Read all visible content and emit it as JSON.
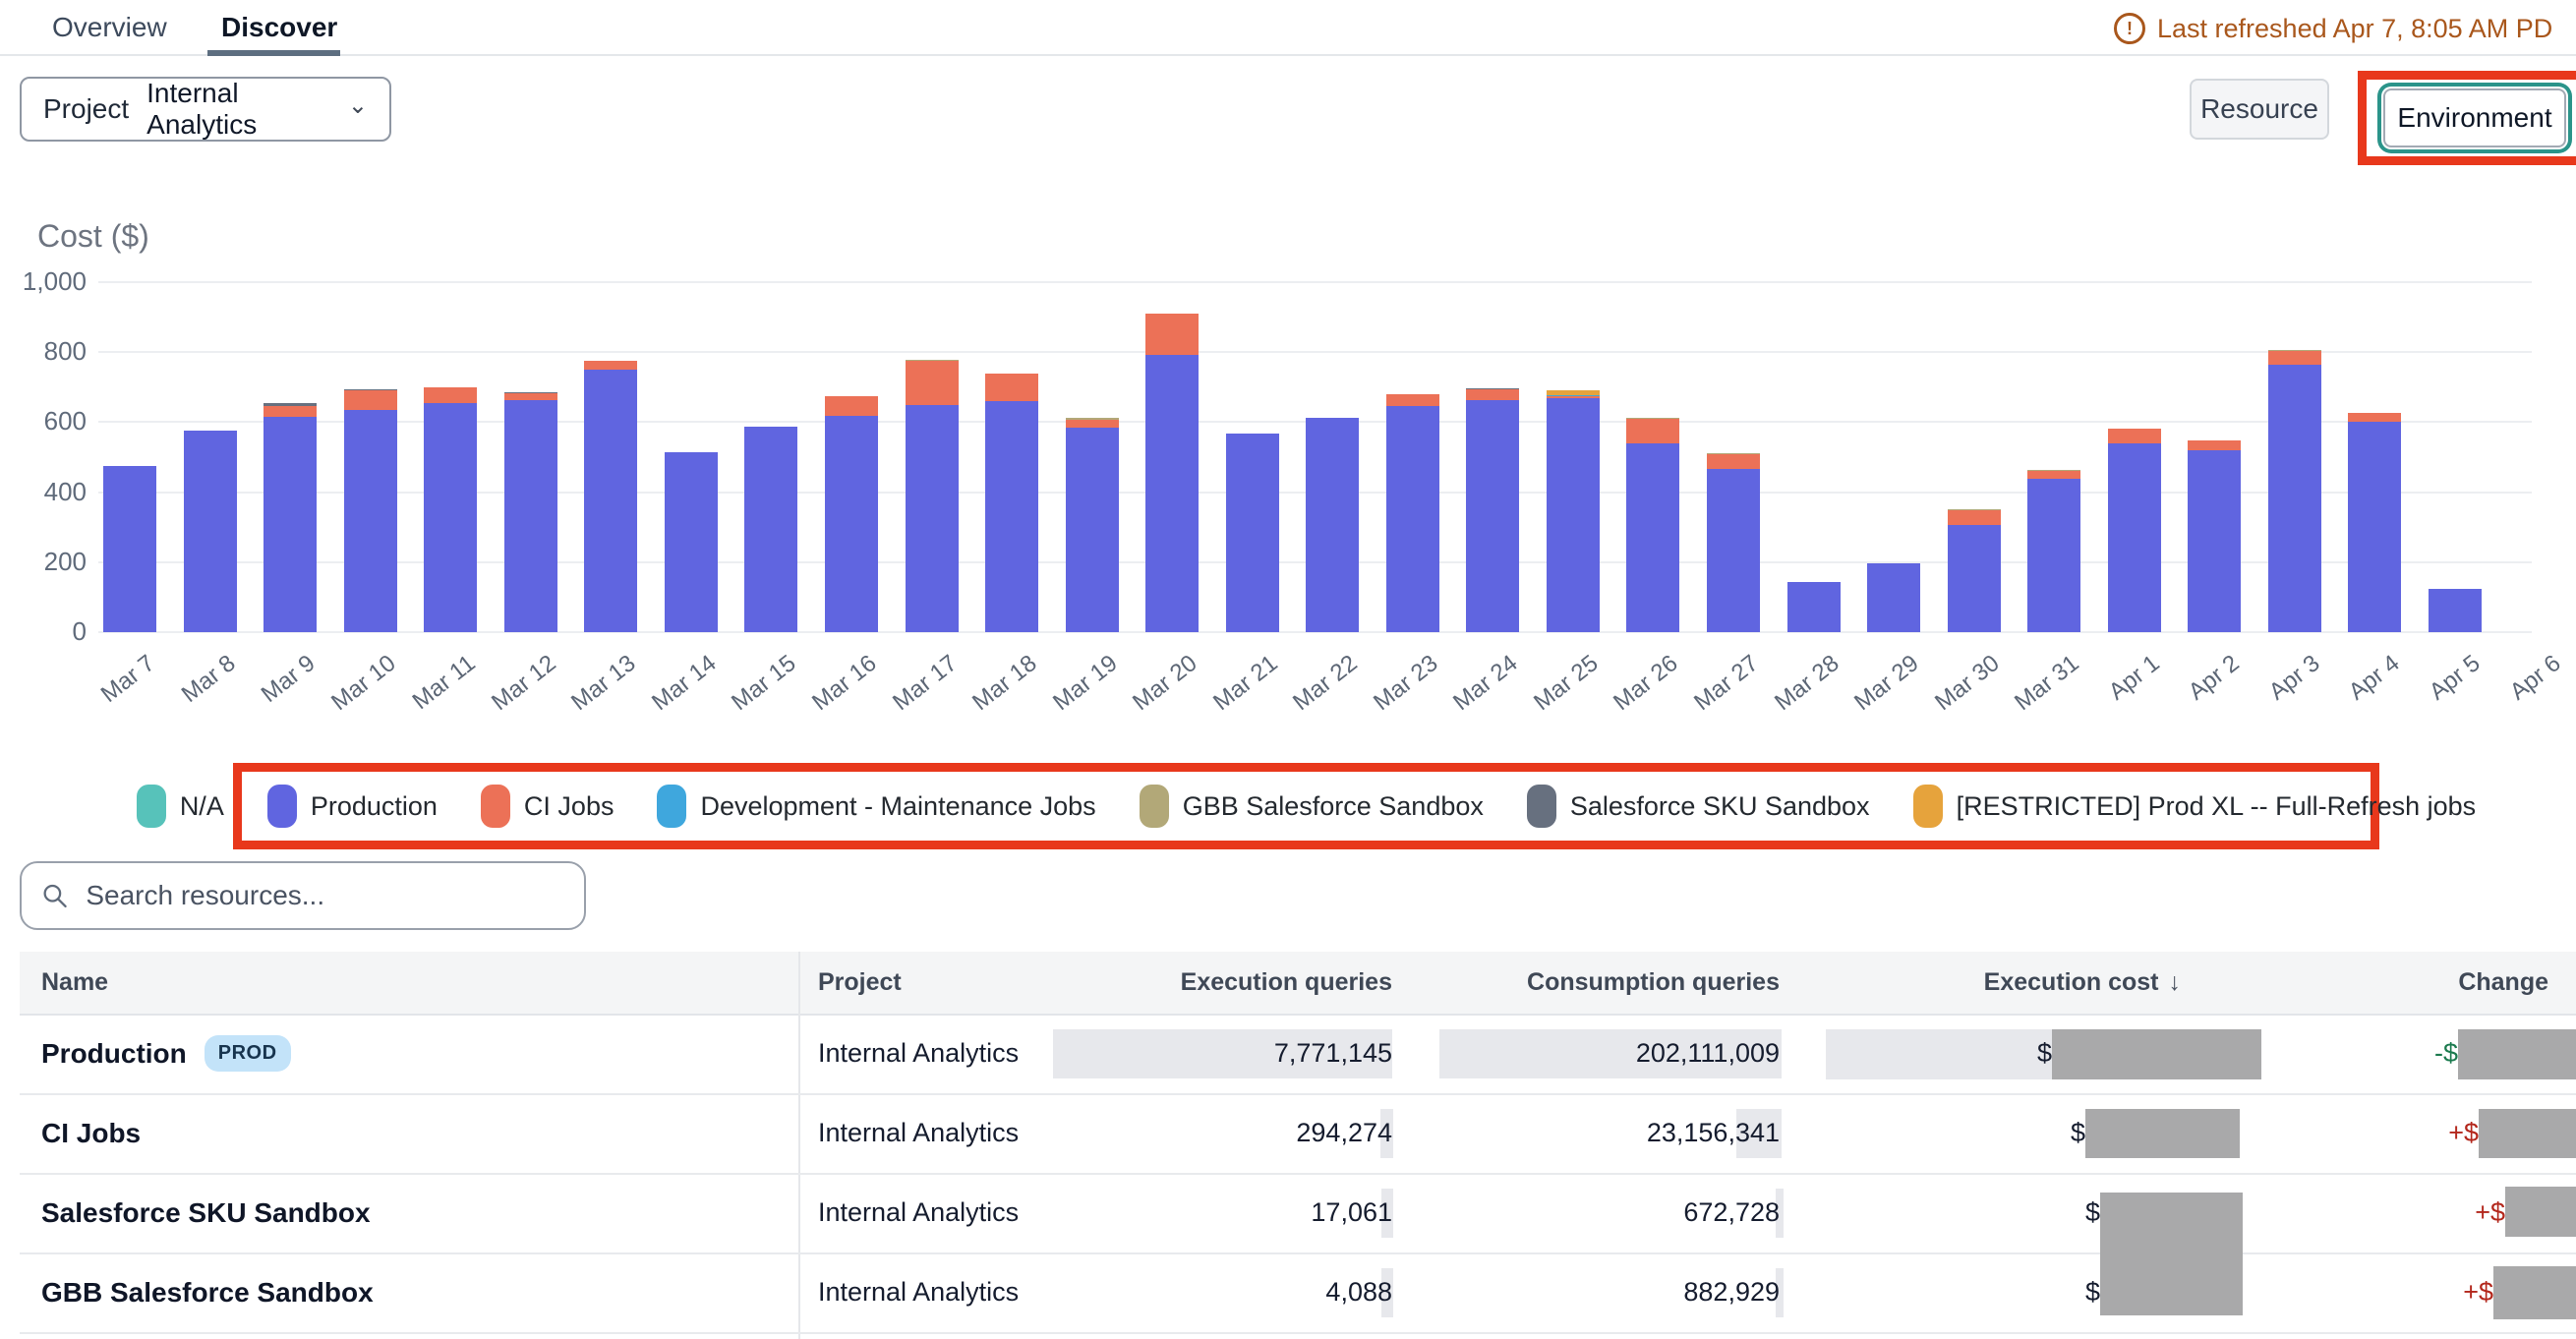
{
  "header": {
    "tabs": [
      {
        "label": "Overview"
      },
      {
        "label": "Discover"
      }
    ],
    "active_tab": "Discover",
    "last_refreshed": "Last refreshed Apr 7, 8:05 AM PD",
    "warning_icon": "exclamation-circle",
    "refresh_color": "#a9571c"
  },
  "controls": {
    "project_filter": {
      "label": "Project",
      "value": "Internal Analytics",
      "chevron": "⌄"
    },
    "resource_button": "Resource",
    "environment_button": "Environment",
    "annotation_color": "#e8381c",
    "environment_ring_color": "#2b948a"
  },
  "chart_data": {
    "type": "bar",
    "stacked": true,
    "title": "Cost ($)",
    "xlabel": "",
    "ylabel": "Cost ($)",
    "ylim": [
      0,
      1000
    ],
    "grid": true,
    "legend_position": "bottom",
    "ytick_values": [
      0,
      200,
      400,
      600,
      800,
      1000
    ],
    "ytick_labels": [
      "0",
      "200",
      "400",
      "600",
      "800",
      "1,000"
    ],
    "categories": [
      "Mar 7",
      "Mar 8",
      "Mar 9",
      "Mar 10",
      "Mar 11",
      "Mar 12",
      "Mar 13",
      "Mar 14",
      "Mar 15",
      "Mar 16",
      "Mar 17",
      "Mar 18",
      "Mar 19",
      "Mar 20",
      "Mar 21",
      "Mar 22",
      "Mar 23",
      "Mar 24",
      "Mar 25",
      "Mar 26",
      "Mar 27",
      "Mar 28",
      "Mar 29",
      "Mar 30",
      "Mar 31",
      "Apr 1",
      "Apr 2",
      "Apr 3",
      "Apr 4",
      "Apr 5",
      "Apr 6"
    ],
    "series": [
      {
        "name": "Production",
        "color": "#6065e0",
        "values": [
          475,
          575,
          615,
          635,
          655,
          663,
          750,
          513,
          588,
          619,
          649,
          661,
          584,
          792,
          567,
          612,
          645,
          664,
          668,
          540,
          465,
          143,
          197,
          305,
          438,
          540,
          520,
          765,
          600,
          124,
          0
        ]
      },
      {
        "name": "CI Jobs",
        "color": "#ec7157",
        "values": [
          0,
          0,
          32,
          55,
          45,
          19,
          25,
          0,
          0,
          56,
          126,
          78,
          24,
          118,
          0,
          0,
          34,
          30,
          6,
          70,
          43,
          0,
          0,
          43,
          22,
          42,
          27,
          38,
          26,
          0,
          0
        ]
      },
      {
        "name": "Development - Maintenance Jobs",
        "color": "#3fa7dd",
        "values": [
          0,
          0,
          0,
          0,
          0,
          0,
          0,
          0,
          0,
          0,
          0,
          0,
          0,
          0,
          0,
          0,
          0,
          0,
          4,
          0,
          0,
          0,
          0,
          0,
          0,
          0,
          0,
          0,
          0,
          0,
          0
        ]
      },
      {
        "name": "GBB Salesforce Sandbox",
        "color": "#b2a878",
        "values": [
          0,
          0,
          0,
          0,
          0,
          0,
          0,
          0,
          0,
          0,
          4,
          0,
          4,
          0,
          0,
          0,
          0,
          0,
          0,
          3,
          3,
          0,
          0,
          3,
          3,
          0,
          0,
          3,
          0,
          0,
          0
        ]
      },
      {
        "name": "Salesforce SKU Sandbox",
        "color": "#67707f",
        "values": [
          0,
          0,
          8,
          4,
          0,
          4,
          0,
          0,
          0,
          0,
          0,
          0,
          0,
          0,
          0,
          0,
          0,
          3,
          0,
          0,
          0,
          0,
          0,
          0,
          0,
          0,
          0,
          0,
          0,
          0,
          0
        ]
      },
      {
        "name": "[RESTRICTED] Prod XL -- Full-Refresh jobs",
        "color": "#e6a33c",
        "values": [
          0,
          0,
          0,
          0,
          0,
          0,
          0,
          0,
          0,
          0,
          0,
          0,
          0,
          0,
          0,
          0,
          0,
          0,
          14,
          0,
          0,
          0,
          0,
          0,
          0,
          0,
          0,
          0,
          0,
          0,
          0
        ]
      },
      {
        "name": "N/A",
        "color": "#57c2ba",
        "values": [
          0,
          0,
          0,
          0,
          0,
          0,
          0,
          0,
          0,
          0,
          0,
          0,
          0,
          0,
          0,
          0,
          0,
          0,
          0,
          0,
          0,
          0,
          0,
          0,
          0,
          0,
          0,
          0,
          0,
          0,
          0
        ]
      }
    ]
  },
  "legend": [
    {
      "label": "N/A",
      "color": "#57c2ba"
    },
    {
      "label": "Production",
      "color": "#6065e0"
    },
    {
      "label": "CI Jobs",
      "color": "#ec7157"
    },
    {
      "label": "Development - Maintenance Jobs",
      "color": "#3fa7dd"
    },
    {
      "label": "GBB Salesforce Sandbox",
      "color": "#b2a878"
    },
    {
      "label": "Salesforce SKU Sandbox",
      "color": "#67707f"
    },
    {
      "label": "[RESTRICTED] Prod XL -- Full-Refresh jobs",
      "color": "#e6a33c"
    }
  ],
  "search": {
    "placeholder": "Search resources..."
  },
  "table": {
    "columns": [
      "Name",
      "Project",
      "Execution queries",
      "Consumption queries",
      "Execution cost",
      "Change"
    ],
    "sort_column": "Execution cost",
    "sort_icon": "↓",
    "rows": [
      {
        "name": "Production",
        "badge": "PROD",
        "project": "Internal Analytics",
        "execution_queries": "7,771,145",
        "consumption_queries": "202,111,009",
        "cost_prefix": "$",
        "change_prefix": "-$"
      },
      {
        "name": "CI Jobs",
        "project": "Internal Analytics",
        "execution_queries": "294,274",
        "consumption_queries": "23,156,341",
        "cost_prefix": "$",
        "change_prefix": "+$"
      },
      {
        "name": "Salesforce SKU Sandbox",
        "project": "Internal Analytics",
        "execution_queries": "17,061",
        "consumption_queries": "672,728",
        "cost_prefix": "$",
        "change_prefix": "+$"
      },
      {
        "name": "GBB Salesforce Sandbox",
        "project": "Internal Analytics",
        "execution_queries": "4,088",
        "consumption_queries": "882,929",
        "cost_prefix": "$",
        "change_prefix": "+$"
      }
    ]
  }
}
